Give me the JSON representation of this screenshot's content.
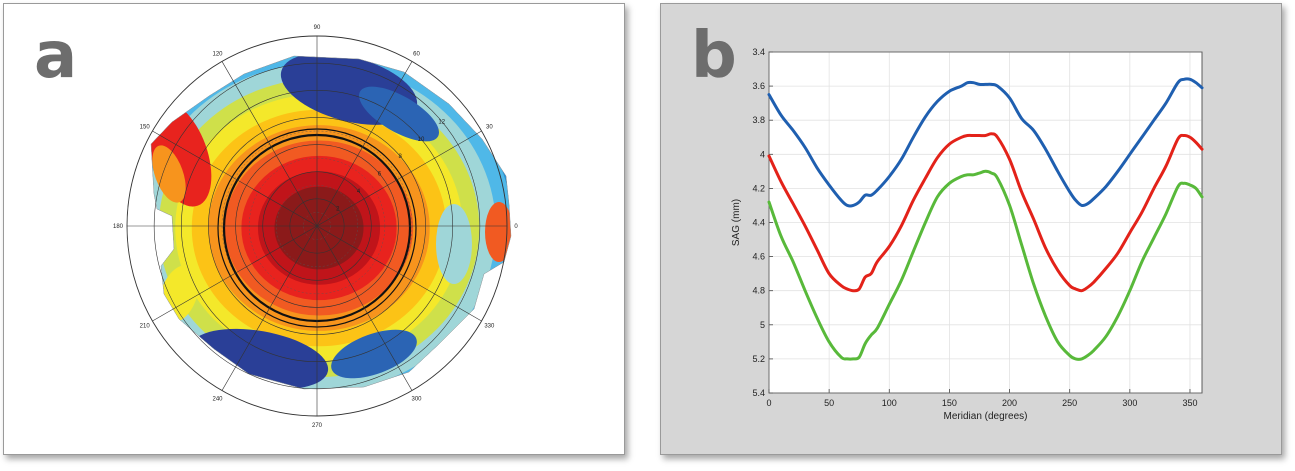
{
  "panels": [
    {
      "letter": "a"
    },
    {
      "letter": "b"
    }
  ],
  "chart_data": [
    {
      "type": "heatmap",
      "subtype": "polar-topography",
      "angle_labels": [
        "0",
        "30",
        "60",
        "90",
        "120",
        "150",
        "180",
        "210",
        "240",
        "270",
        "300",
        "330"
      ],
      "radial_labels": [
        "2",
        "4",
        "6",
        "8",
        "10",
        "12"
      ],
      "colormap": [
        "#8b1a1a",
        "#c0141a",
        "#e8231e",
        "#f15a22",
        "#f7941d",
        "#fcc316",
        "#f4e82a",
        "#cfe04a",
        "#9fd6d8",
        "#4fb8e8",
        "#2a8fd3",
        "#2b64b4",
        "#2a3f97"
      ]
    },
    {
      "type": "line",
      "title": "",
      "xlabel": "Meridian (degrees)",
      "ylabel": "SAG (mm)",
      "xlim": [
        0,
        360
      ],
      "ylim": [
        3.4,
        5.4
      ],
      "y_inverted": true,
      "grid": true,
      "xticks": [
        "0",
        "50",
        "100",
        "150",
        "200",
        "250",
        "300",
        "350"
      ],
      "yticks": [
        "3.4",
        "3.6",
        "3.8",
        "4",
        "4.2",
        "4.4",
        "4.6",
        "4.8",
        "5",
        "5.2",
        "5.4"
      ],
      "x": [
        0,
        10,
        20,
        30,
        40,
        50,
        60,
        65,
        70,
        75,
        80,
        85,
        90,
        100,
        110,
        120,
        130,
        140,
        150,
        160,
        165,
        170,
        175,
        180,
        185,
        190,
        200,
        210,
        220,
        230,
        240,
        250,
        255,
        260,
        265,
        270,
        280,
        290,
        300,
        310,
        320,
        330,
        340,
        345,
        350,
        355,
        360
      ],
      "series": [
        {
          "color": "#1f5fb0",
          "values": [
            3.65,
            3.77,
            3.86,
            3.96,
            4.08,
            4.18,
            4.27,
            4.3,
            4.3,
            4.28,
            4.24,
            4.24,
            4.21,
            4.13,
            4.03,
            3.9,
            3.78,
            3.69,
            3.63,
            3.6,
            3.58,
            3.58,
            3.59,
            3.59,
            3.59,
            3.6,
            3.67,
            3.79,
            3.86,
            3.97,
            4.1,
            4.22,
            4.27,
            4.3,
            4.29,
            4.26,
            4.19,
            4.1,
            4.0,
            3.9,
            3.8,
            3.7,
            3.58,
            3.56,
            3.56,
            3.58,
            3.61
          ]
        },
        {
          "color": "#e32219",
          "values": [
            4.01,
            4.16,
            4.29,
            4.42,
            4.56,
            4.7,
            4.77,
            4.79,
            4.8,
            4.79,
            4.72,
            4.7,
            4.63,
            4.54,
            4.42,
            4.27,
            4.14,
            4.02,
            3.94,
            3.9,
            3.89,
            3.89,
            3.89,
            3.89,
            3.88,
            3.9,
            4.03,
            4.22,
            4.38,
            4.55,
            4.68,
            4.77,
            4.79,
            4.8,
            4.78,
            4.75,
            4.67,
            4.58,
            4.46,
            4.34,
            4.2,
            4.07,
            3.91,
            3.89,
            3.9,
            3.93,
            3.97
          ]
        },
        {
          "color": "#58b93a",
          "values": [
            4.28,
            4.48,
            4.63,
            4.8,
            4.96,
            5.1,
            5.19,
            5.2,
            5.2,
            5.19,
            5.11,
            5.06,
            5.02,
            4.88,
            4.74,
            4.57,
            4.4,
            4.25,
            4.17,
            4.13,
            4.12,
            4.12,
            4.11,
            4.1,
            4.11,
            4.14,
            4.3,
            4.53,
            4.76,
            4.95,
            5.1,
            5.18,
            5.2,
            5.2,
            5.18,
            5.15,
            5.07,
            4.95,
            4.8,
            4.63,
            4.49,
            4.35,
            4.19,
            4.17,
            4.18,
            4.2,
            4.25
          ]
        }
      ]
    }
  ]
}
